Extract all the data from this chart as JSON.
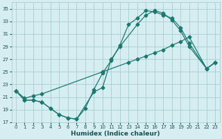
{
  "xlabel": "Humidex (Indice chaleur)",
  "bg_color": "#d6eef2",
  "grid_color": "#a8cdd4",
  "line_color": "#1a7a6e",
  "xlim": [
    -0.5,
    23.5
  ],
  "ylim": [
    17,
    36
  ],
  "yticks": [
    17,
    19,
    21,
    23,
    25,
    27,
    29,
    31,
    33,
    35
  ],
  "xticks": [
    0,
    1,
    2,
    3,
    4,
    5,
    6,
    7,
    8,
    9,
    10,
    11,
    12,
    13,
    14,
    15,
    16,
    17,
    18,
    19,
    20,
    21,
    22,
    23
  ],
  "line1_x": [
    0,
    1,
    2,
    3,
    4,
    5,
    6,
    7,
    8,
    9,
    10,
    11,
    12,
    13,
    14,
    15,
    16,
    17,
    18,
    19,
    20,
    22,
    23
  ],
  "line1_y": [
    22.0,
    20.5,
    20.5,
    20.2,
    19.2,
    18.2,
    17.7,
    17.5,
    19.2,
    22.2,
    24.8,
    26.8,
    29.2,
    32.5,
    33.5,
    34.7,
    34.5,
    34.0,
    33.5,
    32.0,
    29.5,
    25.5,
    26.5
  ],
  "line2_x": [
    0,
    1,
    2,
    3,
    4,
    5,
    6,
    7,
    9,
    10,
    11,
    12,
    14,
    15,
    16,
    17,
    18,
    19,
    20,
    22,
    23
  ],
  "line2_y": [
    22.0,
    20.5,
    20.5,
    20.2,
    19.2,
    18.2,
    17.7,
    17.5,
    21.8,
    22.5,
    27.0,
    29.0,
    32.5,
    34.0,
    34.7,
    34.3,
    33.2,
    31.5,
    29.0,
    25.5,
    26.5
  ],
  "line3_x": [
    0,
    1,
    2,
    3,
    10,
    13,
    14,
    15,
    16,
    17,
    18,
    19,
    20,
    22,
    23
  ],
  "line3_y": [
    22.0,
    20.8,
    21.2,
    21.5,
    25.0,
    26.5,
    27.0,
    27.5,
    28.0,
    28.5,
    29.2,
    29.8,
    30.5,
    25.5,
    26.5
  ]
}
